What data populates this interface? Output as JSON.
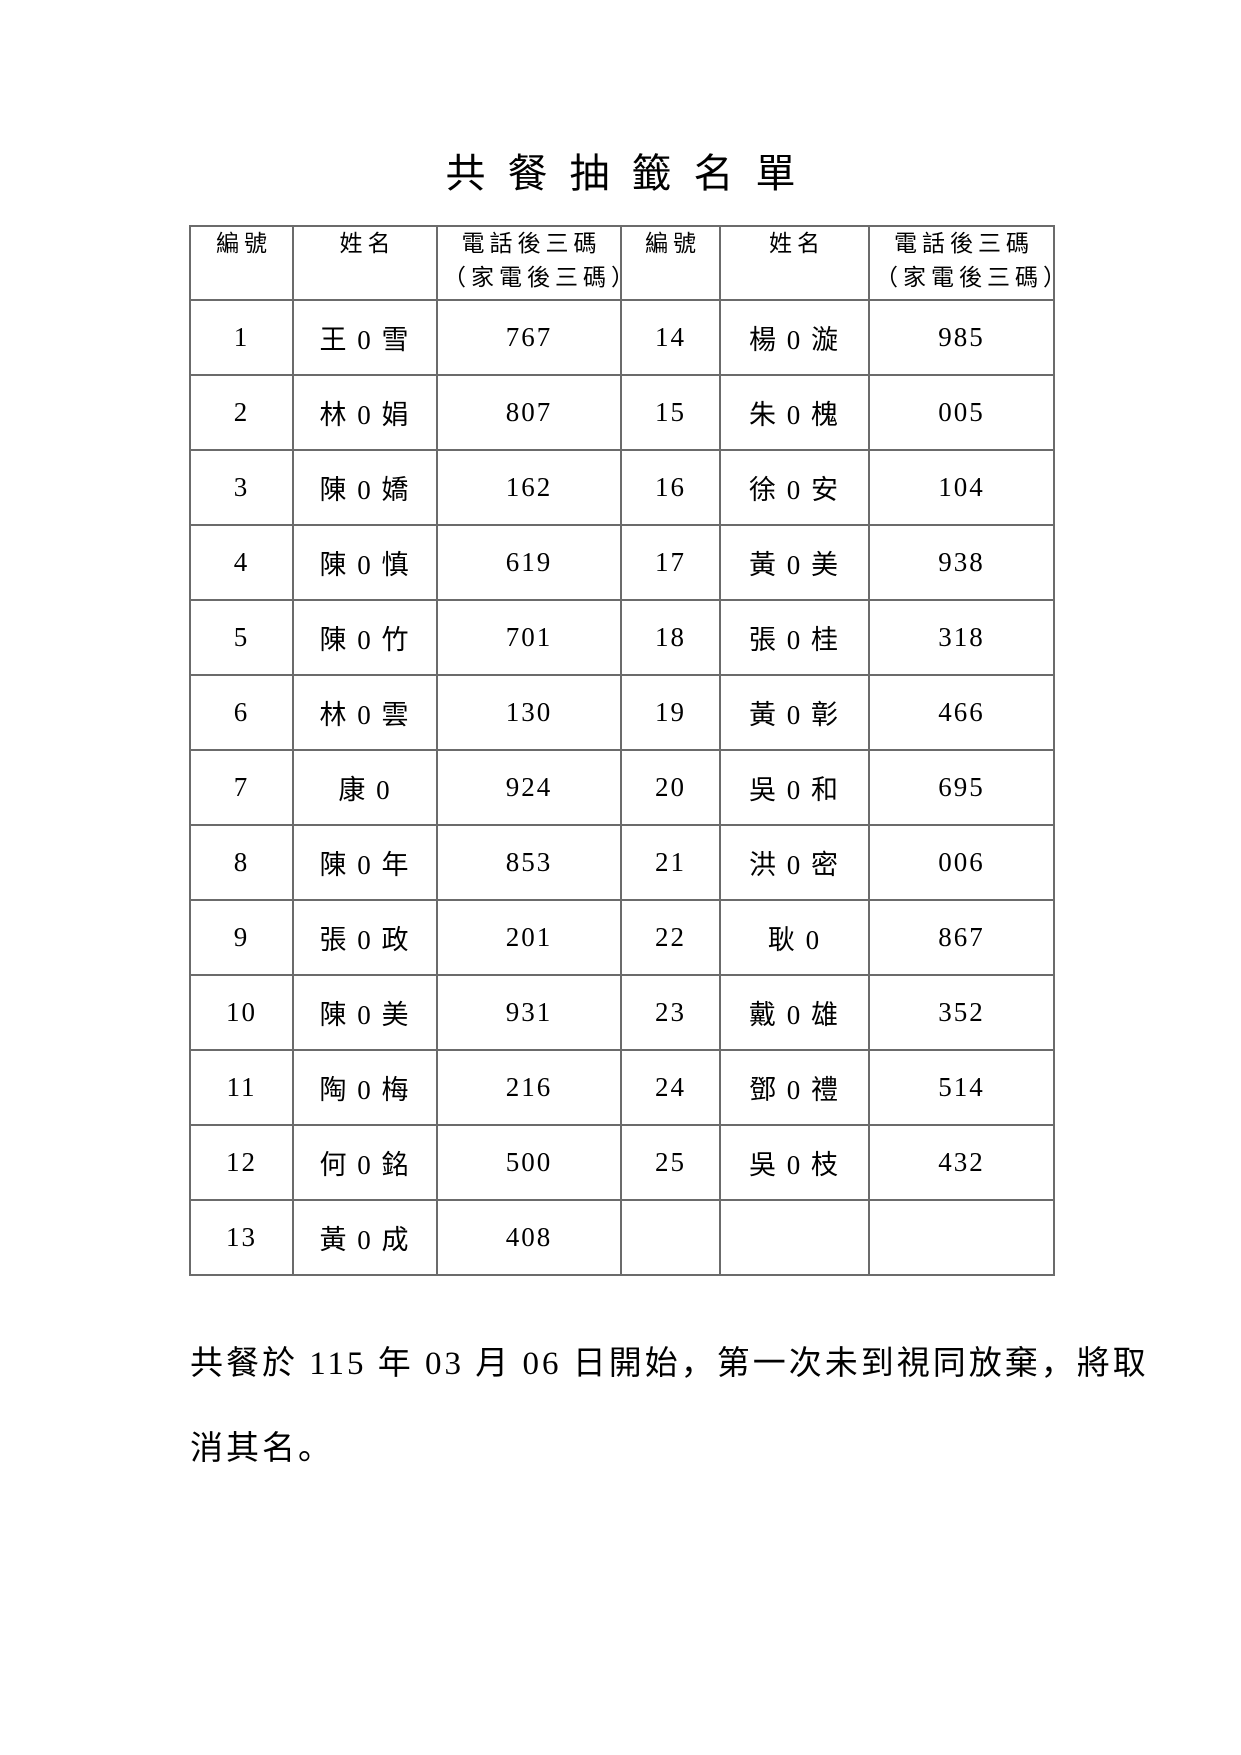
{
  "title": "共餐抽籤名單",
  "table": {
    "headers": {
      "id": "編號",
      "name": "姓名",
      "phone_line1": "電話後三碼",
      "phone_line2": "（家電後三碼）"
    },
    "rows": [
      {
        "id1": "1",
        "name1": "王 0 雪",
        "phone1": "767",
        "id2": "14",
        "name2": "楊 0 漩",
        "phone2": "985"
      },
      {
        "id1": "2",
        "name1": "林 0 娟",
        "phone1": "807",
        "id2": "15",
        "name2": "朱 0 槐",
        "phone2": "005"
      },
      {
        "id1": "3",
        "name1": "陳 0 嬌",
        "phone1": "162",
        "id2": "16",
        "name2": "徐 0 安",
        "phone2": "104"
      },
      {
        "id1": "4",
        "name1": "陳 0 慎",
        "phone1": "619",
        "id2": "17",
        "name2": "黃 0 美",
        "phone2": "938"
      },
      {
        "id1": "5",
        "name1": "陳 0 竹",
        "phone1": "701",
        "id2": "18",
        "name2": "張 0 桂",
        "phone2": "318"
      },
      {
        "id1": "6",
        "name1": "林 0 雲",
        "phone1": "130",
        "id2": "19",
        "name2": "黃 0 彰",
        "phone2": "466"
      },
      {
        "id1": "7",
        "name1": "康 0",
        "phone1": "924",
        "id2": "20",
        "name2": "吳 0 和",
        "phone2": "695"
      },
      {
        "id1": "8",
        "name1": "陳 0 年",
        "phone1": "853",
        "id2": "21",
        "name2": "洪 0 密",
        "phone2": "006"
      },
      {
        "id1": "9",
        "name1": "張 0 政",
        "phone1": "201",
        "id2": "22",
        "name2": "耿 0",
        "phone2": "867"
      },
      {
        "id1": "10",
        "name1": "陳 0 美",
        "phone1": "931",
        "id2": "23",
        "name2": "戴 0 雄",
        "phone2": "352"
      },
      {
        "id1": "11",
        "name1": "陶 0 梅",
        "phone1": "216",
        "id2": "24",
        "name2": "鄧 0 禮",
        "phone2": "514"
      },
      {
        "id1": "12",
        "name1": "何 0 銘",
        "phone1": "500",
        "id2": "25",
        "name2": "吳 0 枝",
        "phone2": "432"
      },
      {
        "id1": "13",
        "name1": "黃 0 成",
        "phone1": "408",
        "id2": "",
        "name2": "",
        "phone2": ""
      }
    ]
  },
  "note_lines": [
    "共餐於 115 年 03 月 06 日開始，第一次未到視同放棄，將取",
    "消其名。"
  ],
  "colors": {
    "text": "#000000",
    "border": "#6b6b6b",
    "background": "#ffffff"
  }
}
